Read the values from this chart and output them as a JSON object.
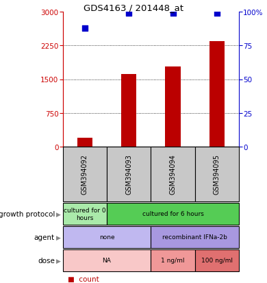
{
  "title": "GDS4163 / 201448_at",
  "samples": [
    "GSM394092",
    "GSM394093",
    "GSM394094",
    "GSM394095"
  ],
  "bar_values": [
    200,
    1620,
    1780,
    2340
  ],
  "percentile_values": [
    88,
    99,
    99,
    99
  ],
  "bar_color": "#bb0000",
  "dot_color": "#0000cc",
  "ylim_left": [
    0,
    3000
  ],
  "ylim_right": [
    0,
    100
  ],
  "yticks_left": [
    0,
    750,
    1500,
    2250,
    3000
  ],
  "yticks_right": [
    0,
    25,
    50,
    75,
    100
  ],
  "ytick_labels_right": [
    "0",
    "25",
    "50",
    "75",
    "100%"
  ],
  "grid_values": [
    750,
    1500,
    2250
  ],
  "row1_cells": [
    {
      "text": "cultured for 0\nhours",
      "color": "#aaeaaa",
      "colspan": 1
    },
    {
      "text": "cultured for 6 hours",
      "color": "#55cc55",
      "colspan": 3
    }
  ],
  "row2_cells": [
    {
      "text": "none",
      "color": "#c0b8f0",
      "colspan": 2
    },
    {
      "text": "recombinant IFNa-2b",
      "color": "#a898e0",
      "colspan": 2
    }
  ],
  "row3_cells": [
    {
      "text": "NA",
      "color": "#f8c8c8",
      "colspan": 2
    },
    {
      "text": "1 ng/ml",
      "color": "#f09898",
      "colspan": 1
    },
    {
      "text": "100 ng/ml",
      "color": "#e07070",
      "colspan": 1
    }
  ],
  "sample_area_color": "#c8c8c8",
  "legend_count_color": "#bb0000",
  "legend_dot_color": "#0000cc",
  "left_axis_color": "#cc0000",
  "right_axis_color": "#0000cc"
}
